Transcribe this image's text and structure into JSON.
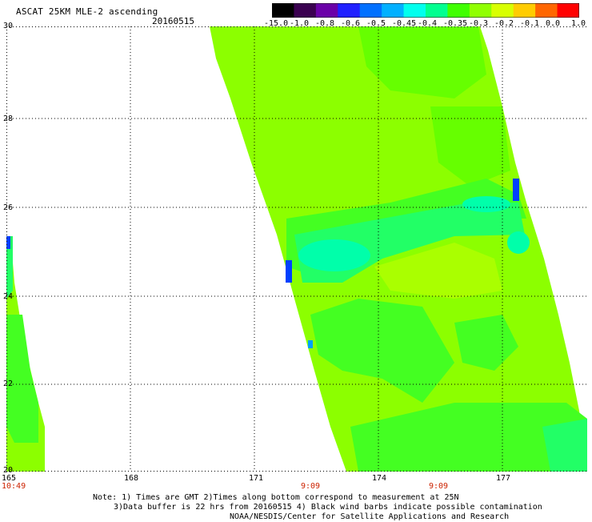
{
  "title": "ASCAT 25KM MLE-2 ascending",
  "date": "20160515",
  "colorbar": {
    "labels": [
      "-15.0",
      "-1.0",
      "-0.8",
      "-0.6",
      "-0.5",
      "-0.45",
      "-0.4",
      "-0.35",
      "-0.3",
      "-0.2",
      "-0.1",
      "0.0",
      "1.0"
    ],
    "colors": [
      "#000000",
      "#3a0050",
      "#6a00a8",
      "#2020ff",
      "#0070ff",
      "#00b0ff",
      "#00ffee",
      "#00ff90",
      "#40ff00",
      "#90ff00",
      "#d8ff00",
      "#ffcc00",
      "#ff6600",
      "#ff0000"
    ]
  },
  "map": {
    "lat_labels": [
      "30",
      "28",
      "26",
      "24",
      "22",
      "20"
    ],
    "lon_labels": [
      "165",
      "168",
      "171",
      "174",
      "177"
    ],
    "lat_range": [
      20,
      30
    ],
    "lon_range": [
      165,
      178.5
    ],
    "grid": true
  },
  "swath_times": [
    "10:49",
    "9:09",
    "9:09"
  ],
  "notes": {
    "line1": "Note: 1) Times are GMT 2)Times along bottom correspond to measurement at 25N",
    "line2": "3)Data buffer is 22 hrs from 20160515 4) Black wind barbs indicate possible contamination",
    "line3": "NOAA/NESDIS/Center for Satellite Applications and Research"
  }
}
